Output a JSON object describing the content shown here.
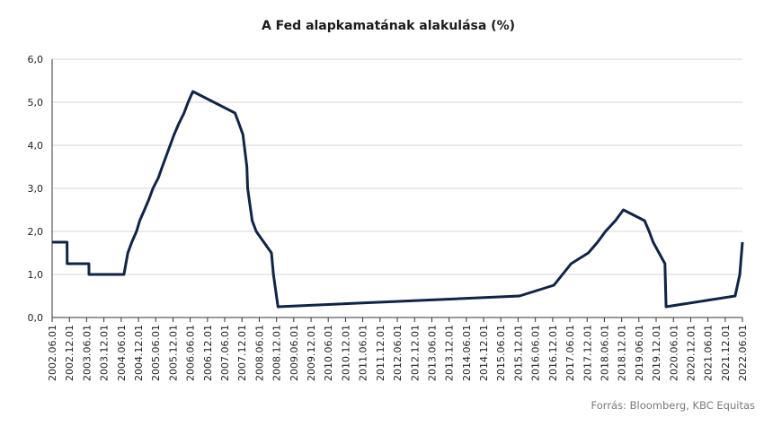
{
  "chart_data": {
    "type": "line",
    "title": "A Fed  alapkamatának alakulása (%)",
    "xlabel": "",
    "ylabel": "",
    "ylim": [
      0,
      6
    ],
    "yticks": [
      "0,0",
      "1,0",
      "2,0",
      "3,0",
      "4,0",
      "5,0",
      "6,0"
    ],
    "xticks": [
      "2002.06.01",
      "2002.12.01",
      "2003.06.01",
      "2003.12.01",
      "2004.06.01",
      "2004.12.01",
      "2005.06.01",
      "2005.12.01",
      "2006.06.01",
      "2006.12.01",
      "2007.06.01",
      "2007.12.01",
      "2008.06.01",
      "2008.12.01",
      "2009.06.01",
      "2009.12.01",
      "2010.06.01",
      "2010.12.01",
      "2011.06.01",
      "2011.12.01",
      "2012.06.01",
      "2012.12.01",
      "2013.06.01",
      "2013.12.01",
      "2014.06.01",
      "2014.12.01",
      "2015.06.01",
      "2015.12.01",
      "2016.06.01",
      "2016.12.01",
      "2017.06.01",
      "2017.12.01",
      "2018.06.01",
      "2018.12.01",
      "2019.06.01",
      "2019.12.01",
      "2020.06.01",
      "2020.12.01",
      "2021.06.01",
      "2021.12.01",
      "2022.06.01"
    ],
    "x_range": [
      "2002.06.01",
      "2022.06.01"
    ],
    "grid": true,
    "legend": "none",
    "source": "Forrás: Bloomberg,  KBC Equitas",
    "line_color": "#0f2448",
    "series": [
      {
        "x": [
          "2002.06.01",
          "2002.11.06",
          "2002.11.07",
          "2003.06.25",
          "2003.06.26",
          "2004.06.30",
          "2004.08.10",
          "2004.09.21",
          "2004.11.10",
          "2004.12.14",
          "2005.02.02",
          "2005.03.22",
          "2005.05.03",
          "2005.06.30",
          "2005.08.09",
          "2005.09.20",
          "2005.11.01",
          "2005.12.13",
          "2006.01.31",
          "2006.03.28",
          "2006.05.10",
          "2006.06.29",
          "2007.09.18",
          "2007.10.31",
          "2007.12.11",
          "2008.01.22",
          "2008.01.30",
          "2008.03.18",
          "2008.04.30",
          "2008.10.08",
          "2008.10.29",
          "2008.12.16",
          "2015.12.16",
          "2016.12.14",
          "2017.03.15",
          "2017.06.14",
          "2017.12.13",
          "2018.03.21",
          "2018.06.13",
          "2018.09.26",
          "2018.12.19",
          "2019.07.31",
          "2019.09.18",
          "2019.10.30",
          "2020.03.03",
          "2020.03.15",
          "2022.03.16",
          "2022.05.04",
          "2022.06.01"
        ],
        "values": [
          1.75,
          1.75,
          1.25,
          1.25,
          1.0,
          1.0,
          1.5,
          1.75,
          2.0,
          2.25,
          2.5,
          2.75,
          3.0,
          3.25,
          3.5,
          3.75,
          4.0,
          4.25,
          4.5,
          4.75,
          5.0,
          5.25,
          4.75,
          4.5,
          4.25,
          3.5,
          3.0,
          2.25,
          2.0,
          1.5,
          1.0,
          0.25,
          0.5,
          0.75,
          1.0,
          1.25,
          1.5,
          1.75,
          2.0,
          2.25,
          2.5,
          2.25,
          2.0,
          1.75,
          1.25,
          0.25,
          0.5,
          1.0,
          1.75
        ]
      }
    ]
  }
}
